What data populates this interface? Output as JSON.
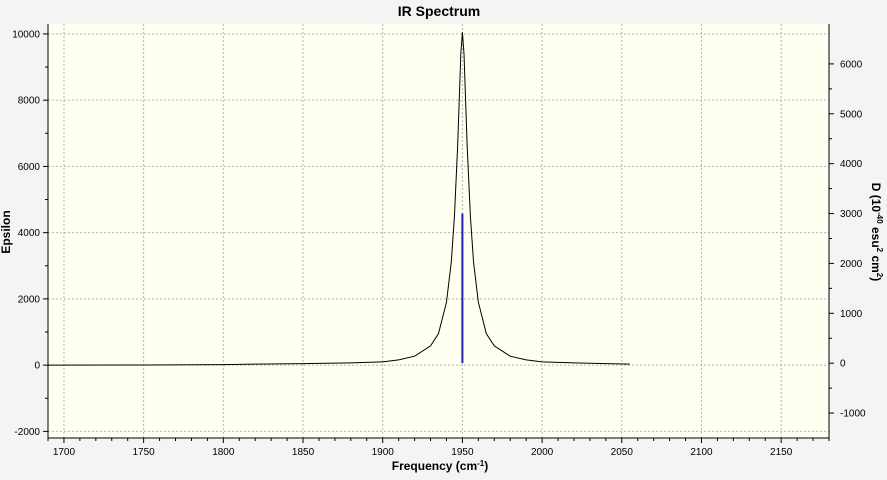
{
  "chart_data": {
    "type": "line",
    "title": "IR Spectrum",
    "xlabel": "Frequency (cm",
    "xlabel_sup": "-1",
    "xlabel_end": ")",
    "ylabel": "Epsilon",
    "y2label_parts": [
      "D (10",
      "-40",
      " esu",
      "2",
      " cm",
      "2",
      ")"
    ],
    "xlim": [
      1690,
      2180
    ],
    "ylim": [
      -2200,
      10300
    ],
    "y2lim": [
      -1500,
      6800
    ],
    "x_ticks": [
      1700,
      1750,
      1800,
      1850,
      1900,
      1950,
      2000,
      2050,
      2100,
      2150
    ],
    "y_ticks": [
      -2000,
      0,
      2000,
      4000,
      6000,
      8000,
      10000
    ],
    "y2_ticks": [
      -1000,
      0,
      1000,
      2000,
      3000,
      4000,
      5000,
      6000
    ],
    "grid": true,
    "colors": {
      "plot_bg": "#fffff2",
      "grid": "#b4b4b4",
      "curve": "#000000",
      "stick": "#1f1fb0"
    },
    "series": [
      {
        "x": [
          1690,
          1750,
          1800,
          1820,
          1850,
          1880,
          1900,
          1910,
          1920,
          1930,
          1935,
          1940,
          1943,
          1945,
          1947,
          1948,
          1949,
          1950,
          1951,
          1952,
          1953,
          1955,
          1957,
          1960,
          1965,
          1970,
          1980,
          1990,
          2000,
          2020,
          2040,
          2055
        ],
        "y": [
          0,
          5,
          15,
          30,
          45,
          70,
          100,
          160,
          270,
          580,
          950,
          1900,
          3100,
          4500,
          6600,
          8000,
          9400,
          10050,
          9400,
          8000,
          6600,
          4500,
          3100,
          1900,
          950,
          580,
          270,
          160,
          100,
          70,
          45,
          30
        ]
      }
    ],
    "sticks": [
      {
        "x": 1950,
        "d": 3000
      }
    ]
  }
}
